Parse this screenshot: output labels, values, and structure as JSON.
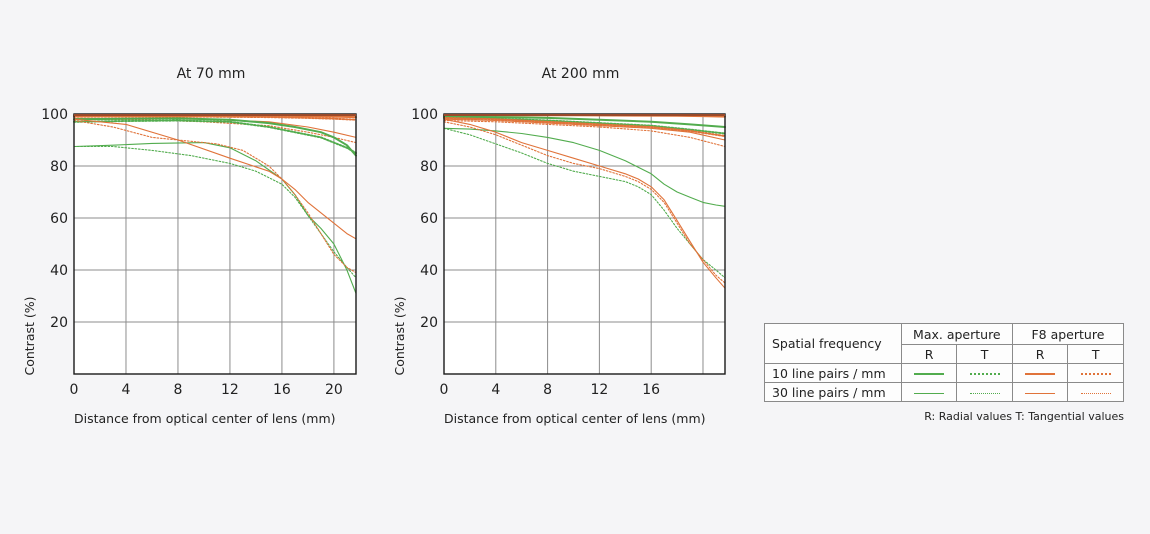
{
  "colors": {
    "green_max": "#52ac4e",
    "orange_f8": "#e0733a",
    "grid": "#8c8c8c",
    "frame": "#1a1a1a"
  },
  "chart_data": [
    {
      "type": "line",
      "title": "At 70 mm",
      "xlabel": "Distance from optical center of lens (mm)",
      "ylabel": "Contrast (%)",
      "xlim": [
        0,
        21.7
      ],
      "ylim": [
        0,
        100
      ],
      "xticks": [
        0,
        4,
        8,
        12,
        16,
        20
      ],
      "yticks": [
        20,
        40,
        60,
        80,
        100
      ],
      "grid": true,
      "series": [
        {
          "aperture": "f8",
          "frequency": "10",
          "orientation": "R",
          "x": [
            0,
            5,
            10,
            15,
            18,
            20,
            21.7
          ],
          "y": [
            99.5,
            99.5,
            99.5,
            99.4,
            99.2,
            99,
            98.8
          ]
        },
        {
          "aperture": "f8",
          "frequency": "10",
          "orientation": "T",
          "x": [
            0,
            5,
            10,
            15,
            18,
            20,
            21.7
          ],
          "y": [
            99,
            99,
            99,
            98.8,
            98.5,
            98.2,
            97.8
          ]
        },
        {
          "aperture": "f8",
          "frequency": "30",
          "orientation": "R",
          "x": [
            0,
            5,
            10,
            15,
            18,
            20,
            21.7
          ],
          "y": [
            98.3,
            98.2,
            98,
            97,
            95,
            93,
            91
          ]
        },
        {
          "aperture": "f8",
          "frequency": "30",
          "orientation": "T",
          "x": [
            0,
            5,
            10,
            15,
            18,
            20,
            21.7
          ],
          "y": [
            98,
            97.8,
            97,
            95.5,
            93,
            91,
            89
          ]
        },
        {
          "aperture": "max",
          "frequency": "10",
          "orientation": "R",
          "x": [
            0,
            4,
            8,
            12,
            15,
            17,
            19,
            20,
            21,
            21.7
          ],
          "y": [
            98,
            98.2,
            98.3,
            97.8,
            96.5,
            95,
            93,
            91,
            88,
            84
          ]
        },
        {
          "aperture": "max",
          "frequency": "10",
          "orientation": "T",
          "x": [
            0,
            4,
            8,
            12,
            15,
            17,
            19,
            20,
            21,
            21.7
          ],
          "y": [
            97,
            97.3,
            97.5,
            97,
            95,
            93,
            91,
            89,
            87,
            85
          ]
        },
        {
          "aperture": "max",
          "frequency": "30",
          "orientation": "R",
          "x": [
            0,
            3,
            6,
            10,
            12,
            14,
            16,
            17,
            18,
            19,
            20,
            21,
            21.7
          ],
          "y": [
            87.5,
            88,
            88.7,
            89,
            87,
            82,
            75,
            69,
            61,
            56,
            50,
            40,
            31
          ]
        },
        {
          "aperture": "max",
          "frequency": "30",
          "orientation": "T",
          "x": [
            0,
            3,
            6,
            9,
            12,
            14,
            16,
            17,
            18,
            19,
            20,
            21,
            21.7
          ],
          "y": [
            87.5,
            87.5,
            86,
            84,
            81,
            78,
            73,
            68,
            61,
            54,
            47,
            41,
            37
          ]
        },
        {
          "aperture": "f8",
          "frequency": "30",
          "orientation": "R",
          "x": [
            0,
            4,
            8,
            12,
            15,
            16,
            17,
            18,
            19,
            20,
            21,
            21.7
          ],
          "y": [
            98,
            96,
            90,
            83,
            78,
            75,
            71,
            66,
            62,
            58,
            54,
            52
          ]
        },
        {
          "aperture": "f8",
          "frequency": "30",
          "orientation": "T",
          "x": [
            0,
            3,
            6,
            9,
            11,
            13,
            15,
            16,
            17,
            18,
            19,
            20,
            21,
            21.7
          ],
          "y": [
            97.5,
            95,
            91,
            89.5,
            88.5,
            86,
            80,
            75,
            69,
            62,
            54,
            46,
            41,
            39
          ]
        }
      ]
    },
    {
      "type": "line",
      "title": "At 200 mm",
      "xlabel": "Distance from optical center of lens (mm)",
      "ylabel": "Contrast (%)",
      "xlim": [
        0,
        21.7
      ],
      "ylim": [
        0,
        100
      ],
      "xticks": [
        0,
        4,
        8,
        12,
        16
      ],
      "yticks": [
        20,
        40,
        60,
        80,
        100
      ],
      "grid": true,
      "series": [
        {
          "aperture": "f8",
          "frequency": "10",
          "orientation": "R",
          "x": [
            0,
            5,
            10,
            15,
            18,
            20,
            21.7
          ],
          "y": [
            99.5,
            99.5,
            99.5,
            99.4,
            99.3,
            99.2,
            99
          ]
        },
        {
          "aperture": "max",
          "frequency": "10",
          "orientation": "R",
          "x": [
            0,
            4,
            8,
            12,
            16,
            19,
            21.7
          ],
          "y": [
            99,
            98.8,
            98.5,
            97.8,
            97,
            96,
            95
          ]
        },
        {
          "aperture": "max",
          "frequency": "10",
          "orientation": "T",
          "x": [
            0,
            4,
            8,
            12,
            16,
            19,
            21.7
          ],
          "y": [
            98.5,
            98.2,
            97.5,
            96.5,
            95.5,
            94,
            92.5
          ]
        },
        {
          "aperture": "f8",
          "frequency": "10",
          "orientation": "T",
          "x": [
            0,
            4,
            8,
            12,
            16,
            19,
            21.7
          ],
          "y": [
            98.5,
            98,
            97,
            96,
            95,
            93.5,
            91.5
          ]
        },
        {
          "aperture": "f8",
          "frequency": "30",
          "orientation": "R",
          "x": [
            0,
            4,
            8,
            12,
            16,
            19,
            21.7
          ],
          "y": [
            98,
            97.5,
            96.5,
            95.5,
            94.5,
            93,
            90
          ]
        },
        {
          "aperture": "f8",
          "frequency": "30",
          "orientation": "T",
          "x": [
            0,
            4,
            8,
            12,
            16,
            19,
            21.7
          ],
          "y": [
            97.5,
            97,
            96,
            95,
            93.5,
            91,
            87.5
          ]
        },
        {
          "aperture": "max",
          "frequency": "30",
          "orientation": "R",
          "x": [
            0,
            2,
            4,
            6,
            8,
            10,
            12,
            14,
            16,
            17,
            18,
            19,
            20,
            21,
            21.7
          ],
          "y": [
            94.5,
            94.2,
            93.5,
            92.5,
            91,
            89,
            86,
            82,
            77,
            73,
            70,
            68,
            66,
            65,
            64.5
          ]
        },
        {
          "aperture": "max",
          "frequency": "30",
          "orientation": "T",
          "x": [
            0,
            2,
            4,
            6,
            8,
            10,
            12,
            14,
            15,
            16,
            17,
            18,
            19,
            20,
            21,
            21.7
          ],
          "y": [
            94.5,
            92,
            88.5,
            85,
            81,
            78,
            76,
            74,
            72,
            69,
            63,
            56,
            50,
            44,
            40,
            37
          ]
        },
        {
          "aperture": "f8",
          "frequency": "30",
          "orientation": "R",
          "x": [
            0,
            2,
            4,
            6,
            8,
            10,
            12,
            14,
            15,
            16,
            17,
            18,
            19,
            20,
            21,
            21.7
          ],
          "y": [
            98,
            96,
            93,
            89,
            86,
            83,
            80,
            77,
            75,
            72,
            67,
            59,
            51,
            43,
            37,
            33
          ]
        },
        {
          "aperture": "f8",
          "frequency": "30",
          "orientation": "T",
          "x": [
            0,
            2,
            4,
            6,
            8,
            10,
            12,
            14,
            15,
            16,
            17,
            18,
            19,
            20,
            21,
            21.7
          ],
          "y": [
            97,
            95,
            92,
            88,
            84,
            81,
            79,
            76,
            74,
            71,
            66,
            58,
            50,
            44,
            38,
            35
          ]
        }
      ]
    }
  ],
  "legend": {
    "spatial_frequency": "Spatial frequency",
    "max_aperture": "Max. aperture",
    "f8_aperture": "F8 aperture",
    "r": "R",
    "t": "T",
    "row_10": "10 line pairs / mm",
    "row_30": "30 line pairs / mm",
    "note": "R: Radial values  T: Tangential values"
  }
}
